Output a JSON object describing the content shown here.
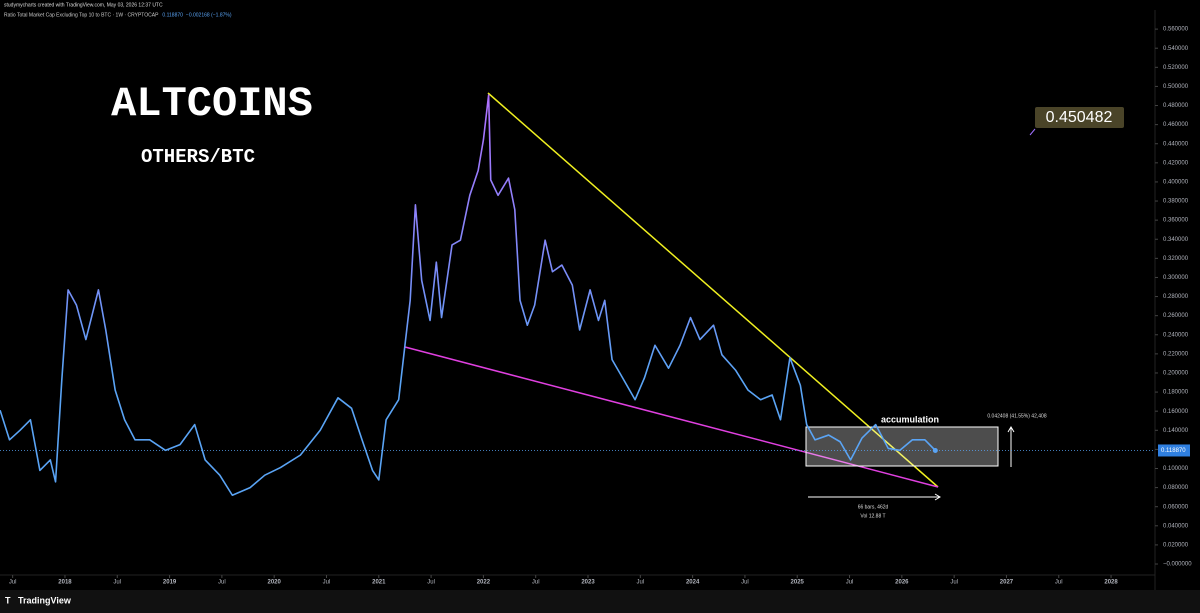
{
  "chart_data": {
    "type": "line",
    "header": "studymycharts created with TradingView.com, May 03, 2026 12:37 UTC",
    "last_value": "0.118870",
    "change": "−0.002168 (−1.87%)",
    "title": "ALTCOINS",
    "subtitle": "OTHERS/BTC",
    "badge": 0.450482,
    "box_label": "accumulation",
    "measure": "0.042408 (41.55%) 42,408",
    "range_bars": "66 bars, 462d",
    "range_vol": "Vol 12.88 T",
    "logo": "TradingView",
    "last_price": {
      "value": 0.11887,
      "label": "0.118870"
    },
    "xlim": [
      2017.379,
      2028.42
    ],
    "ylim": [
      -0.0115,
      0.58
    ],
    "xticks": [
      {
        "value": 2017.5,
        "label": "Jul"
      },
      2018,
      {
        "value": 2018.5,
        "label": "Jul"
      },
      2019,
      {
        "value": 2019.5,
        "label": "Jul"
      },
      2020,
      {
        "value": 2020.5,
        "label": "Jul"
      },
      2021,
      {
        "value": 2021.5,
        "label": "Jul"
      },
      2022,
      {
        "value": 2022.5,
        "label": "Jul"
      },
      2023,
      {
        "value": 2023.5,
        "label": "Jul"
      },
      2024,
      {
        "value": 2024.5,
        "label": "Jul"
      },
      2025,
      {
        "value": 2025.5,
        "label": "Jul"
      },
      2026,
      {
        "value": 2026.5,
        "label": "Jul"
      },
      2027,
      {
        "value": 2027.5,
        "label": "Jul"
      },
      2028
    ],
    "yticks": [
      {
        "value": 0.56,
        "label": "0.560000"
      },
      {
        "value": 0.54,
        "label": "0.540000"
      },
      {
        "value": 0.52,
        "label": "0.520000"
      },
      {
        "value": 0.5,
        "label": "0.500000"
      },
      {
        "value": 0.48,
        "label": "0.480000"
      },
      {
        "value": 0.46,
        "label": "0.460000"
      },
      {
        "value": 0.44,
        "label": "0.440000"
      },
      {
        "value": 0.42,
        "label": "0.420000"
      },
      {
        "value": 0.4,
        "label": "0.400000"
      },
      {
        "value": 0.38,
        "label": "0.380000"
      },
      {
        "value": 0.36,
        "label": "0.360000"
      },
      {
        "value": 0.34,
        "label": "0.340000"
      },
      {
        "value": 0.32,
        "label": "0.320000"
      },
      {
        "value": 0.3,
        "label": "0.300000"
      },
      {
        "value": 0.28,
        "label": "0.280000"
      },
      {
        "value": 0.26,
        "label": "0.260000"
      },
      {
        "value": 0.24,
        "label": "0.240000"
      },
      {
        "value": 0.22,
        "label": "0.220000"
      },
      {
        "value": 0.2,
        "label": "0.200000"
      },
      {
        "value": 0.18,
        "label": "0.180000"
      },
      {
        "value": 0.16,
        "label": "0.160000"
      },
      {
        "value": 0.14,
        "label": "0.140000"
      },
      {
        "value": 0.12,
        "label": "0.120000"
      },
      {
        "value": 0.1,
        "label": "0.100000"
      },
      {
        "value": 0.08,
        "label": "0.080000"
      },
      {
        "value": 0.06,
        "label": "0.060000"
      },
      {
        "value": 0.04,
        "label": "0.040000"
      },
      {
        "value": 0.02,
        "label": "0.020000"
      },
      {
        "value": 0,
        "label": "−0.000000"
      }
    ],
    "series": [
      {
        "name": "Ratio Total Market Cap Excluding Top 10 to BTC · 1W · CRYPTOCAP",
        "color": "#5aa4f5",
        "x": [
          2017.38,
          2017.47,
          2017.57,
          2017.67,
          2017.76,
          2017.86,
          2017.91,
          2017.97,
          2018.03,
          2018.11,
          2018.2,
          2018.32,
          2018.39,
          2018.48,
          2018.57,
          2018.67,
          2018.81,
          2018.96,
          2019.1,
          2019.24,
          2019.34,
          2019.48,
          2019.6,
          2019.77,
          2019.91,
          2020.06,
          2020.25,
          2020.44,
          2020.61,
          2020.74,
          2020.84,
          2020.94,
          2021.0,
          2021.07,
          2021.19,
          2021.25,
          2021.3,
          2021.35,
          2021.41,
          2021.49,
          2021.55,
          2021.6,
          2021.7,
          2021.78,
          2021.87,
          2021.95,
          2022.0,
          2022.05,
          2022.07,
          2022.14,
          2022.24,
          2022.3,
          2022.35,
          2022.42,
          2022.49,
          2022.59,
          2022.66,
          2022.75,
          2022.85,
          2022.92,
          2023.02,
          2023.1,
          2023.16,
          2023.23,
          2023.33,
          2023.45,
          2023.54,
          2023.64,
          2023.77,
          2023.88,
          2023.98,
          2024.07,
          2024.2,
          2024.28,
          2024.41,
          2024.53,
          2024.65,
          2024.76,
          2024.84,
          2024.93,
          2025.03,
          2025.09,
          2025.17,
          2025.3,
          2025.41,
          2025.51,
          2025.62,
          2025.75,
          2025.87,
          2025.98,
          2026.1,
          2026.22,
          2026.32
        ],
        "values": [
          0.161,
          0.13,
          0.14,
          0.151,
          0.098,
          0.109,
          0.086,
          0.193,
          0.287,
          0.271,
          0.235,
          0.287,
          0.245,
          0.182,
          0.151,
          0.13,
          0.13,
          0.119,
          0.125,
          0.146,
          0.109,
          0.093,
          0.072,
          0.08,
          0.093,
          0.101,
          0.114,
          0.14,
          0.174,
          0.163,
          0.13,
          0.098,
          0.088,
          0.151,
          0.172,
          0.229,
          0.276,
          0.376,
          0.297,
          0.255,
          0.316,
          0.258,
          0.334,
          0.339,
          0.386,
          0.412,
          0.444,
          0.491,
          0.402,
          0.386,
          0.404,
          0.371,
          0.276,
          0.25,
          0.271,
          0.339,
          0.306,
          0.313,
          0.292,
          0.245,
          0.287,
          0.255,
          0.276,
          0.214,
          0.195,
          0.172,
          0.195,
          0.229,
          0.205,
          0.229,
          0.258,
          0.235,
          0.25,
          0.219,
          0.203,
          0.182,
          0.172,
          0.177,
          0.151,
          0.216,
          0.187,
          0.146,
          0.13,
          0.135,
          0.128,
          0.109,
          0.132,
          0.146,
          0.121,
          0.119,
          0.13,
          0.13,
          0.11887
        ]
      }
    ]
  }
}
